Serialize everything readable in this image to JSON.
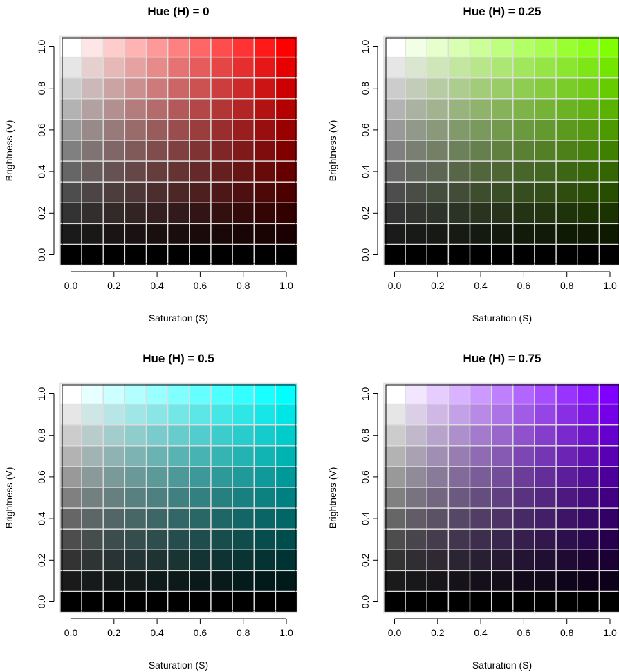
{
  "chart_data": [
    {
      "type": "heatmap",
      "title": "Hue (H) = 0",
      "hue": 0,
      "xlabel": "Saturation (S)",
      "ylabel": "Brightness (V)",
      "xlim": [
        0.0,
        1.0
      ],
      "ylim": [
        0.0,
        1.0
      ],
      "x_ticks": [
        "0.0",
        "0.2",
        "0.4",
        "0.6",
        "0.8",
        "1.0"
      ],
      "y_ticks": [
        "0.0",
        "0.2",
        "0.4",
        "0.6",
        "0.8",
        "1.0"
      ],
      "saturation_values": [
        0.0,
        0.1,
        0.2,
        0.3,
        0.4,
        0.5,
        0.6,
        0.7,
        0.8,
        0.9,
        1.0
      ],
      "brightness_values": [
        0.0,
        0.1,
        0.2,
        0.3,
        0.4,
        0.5,
        0.6,
        0.7,
        0.8,
        0.9,
        1.0
      ],
      "cell_border_color": "#dddddd"
    },
    {
      "type": "heatmap",
      "title": "Hue (H) = 0.25",
      "hue": 0.25,
      "xlabel": "Saturation (S)",
      "ylabel": "Brightness (V)",
      "xlim": [
        0.0,
        1.0
      ],
      "ylim": [
        0.0,
        1.0
      ],
      "x_ticks": [
        "0.0",
        "0.2",
        "0.4",
        "0.6",
        "0.8",
        "1.0"
      ],
      "y_ticks": [
        "0.0",
        "0.2",
        "0.4",
        "0.6",
        "0.8",
        "1.0"
      ],
      "saturation_values": [
        0.0,
        0.1,
        0.2,
        0.3,
        0.4,
        0.5,
        0.6,
        0.7,
        0.8,
        0.9,
        1.0
      ],
      "brightness_values": [
        0.0,
        0.1,
        0.2,
        0.3,
        0.4,
        0.5,
        0.6,
        0.7,
        0.8,
        0.9,
        1.0
      ],
      "cell_border_color": "#dddddd"
    },
    {
      "type": "heatmap",
      "title": "Hue (H) = 0.5",
      "hue": 0.5,
      "xlabel": "Saturation (S)",
      "ylabel": "Brightness (V)",
      "xlim": [
        0.0,
        1.0
      ],
      "ylim": [
        0.0,
        1.0
      ],
      "x_ticks": [
        "0.0",
        "0.2",
        "0.4",
        "0.6",
        "0.8",
        "1.0"
      ],
      "y_ticks": [
        "0.0",
        "0.2",
        "0.4",
        "0.6",
        "0.8",
        "1.0"
      ],
      "saturation_values": [
        0.0,
        0.1,
        0.2,
        0.3,
        0.4,
        0.5,
        0.6,
        0.7,
        0.8,
        0.9,
        1.0
      ],
      "brightness_values": [
        0.0,
        0.1,
        0.2,
        0.3,
        0.4,
        0.5,
        0.6,
        0.7,
        0.8,
        0.9,
        1.0
      ],
      "cell_border_color": "#dddddd"
    },
    {
      "type": "heatmap",
      "title": "Hue (H) = 0.75",
      "hue": 0.75,
      "xlabel": "Saturation (S)",
      "ylabel": "Brightness (V)",
      "xlim": [
        0.0,
        1.0
      ],
      "ylim": [
        0.0,
        1.0
      ],
      "x_ticks": [
        "0.0",
        "0.2",
        "0.4",
        "0.6",
        "0.8",
        "1.0"
      ],
      "y_ticks": [
        "0.0",
        "0.2",
        "0.4",
        "0.6",
        "0.8",
        "1.0"
      ],
      "saturation_values": [
        0.0,
        0.1,
        0.2,
        0.3,
        0.4,
        0.5,
        0.6,
        0.7,
        0.8,
        0.9,
        1.0
      ],
      "brightness_values": [
        0.0,
        0.1,
        0.2,
        0.3,
        0.4,
        0.5,
        0.6,
        0.7,
        0.8,
        0.9,
        1.0
      ],
      "cell_border_color": "#dddddd"
    }
  ]
}
